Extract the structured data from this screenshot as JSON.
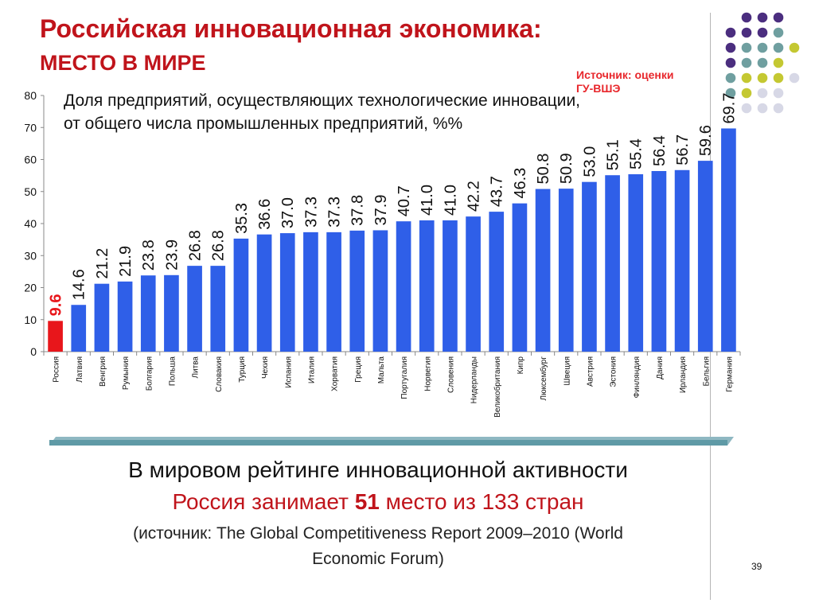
{
  "header": {
    "title": "Российская инновационная экономика:",
    "subtitle": "МЕСТО В МИРЕ",
    "source_line1": "Источник: оценки",
    "source_line2": "ГУ-ВШЭ"
  },
  "chart_data": {
    "type": "bar",
    "title": "Доля предприятий, осуществляющих технологические инновации, от общего числа промышленных предприятий, %%",
    "categories": [
      "Россия",
      "Латвия",
      "Венгрия",
      "Румыния",
      "Болгария",
      "Польша",
      "Литва",
      "Словакия",
      "Турция",
      "Чехия",
      "Испания",
      "Италия",
      "Хорватия",
      "Греция",
      "Мальта",
      "Португалия",
      "Норвегия",
      "Словения",
      "Нидерланды",
      "Великобритания",
      "Кипр",
      "Люксембург",
      "Швеция",
      "Австрия",
      "Эстония",
      "Финляндия",
      "Дания",
      "Ирландия",
      "Бельгия",
      "Германия"
    ],
    "values": [
      9.6,
      14.6,
      21.2,
      21.9,
      23.8,
      23.9,
      26.8,
      26.8,
      35.3,
      36.6,
      37.0,
      37.3,
      37.3,
      37.8,
      37.9,
      40.7,
      41.0,
      41.0,
      42.2,
      43.7,
      46.3,
      50.8,
      50.9,
      53.0,
      55.1,
      55.4,
      56.4,
      56.7,
      59.6,
      69.7
    ],
    "value_labels": [
      "9.6",
      "14.6",
      "21.2",
      "21.9",
      "23.8",
      "23.9",
      "26.8",
      "26.8",
      "35.3",
      "36.6",
      "37.0",
      "37.3",
      "37.3",
      "37.8",
      "37.9",
      "40.7",
      "41.0",
      "41.0",
      "42.2",
      "43.7",
      "46.3",
      "50.8",
      "50.9",
      "53.0",
      "55.1",
      "55.4",
      "56.4",
      "56.7",
      "59.6",
      "69.7"
    ],
    "highlight_index": 0,
    "highlight_color": "#e8161b",
    "bar_color": "#2f5fe8",
    "ylim": [
      0,
      80
    ],
    "yticks": [
      0,
      10,
      20,
      30,
      40,
      50,
      60,
      70,
      80
    ],
    "xlabel": "",
    "ylabel": "",
    "grid": false,
    "legend": "none"
  },
  "footer": {
    "line1": "В мировом рейтинге инновационной активности",
    "line2_prefix": "Россия занимает ",
    "line2_number": "51",
    "line2_suffix": " место из 133 стран",
    "line3": "(источник: The Global Competitiveness Report 2009–2010 (World",
    "line4": "Economic Forum)",
    "page_number": "39"
  }
}
